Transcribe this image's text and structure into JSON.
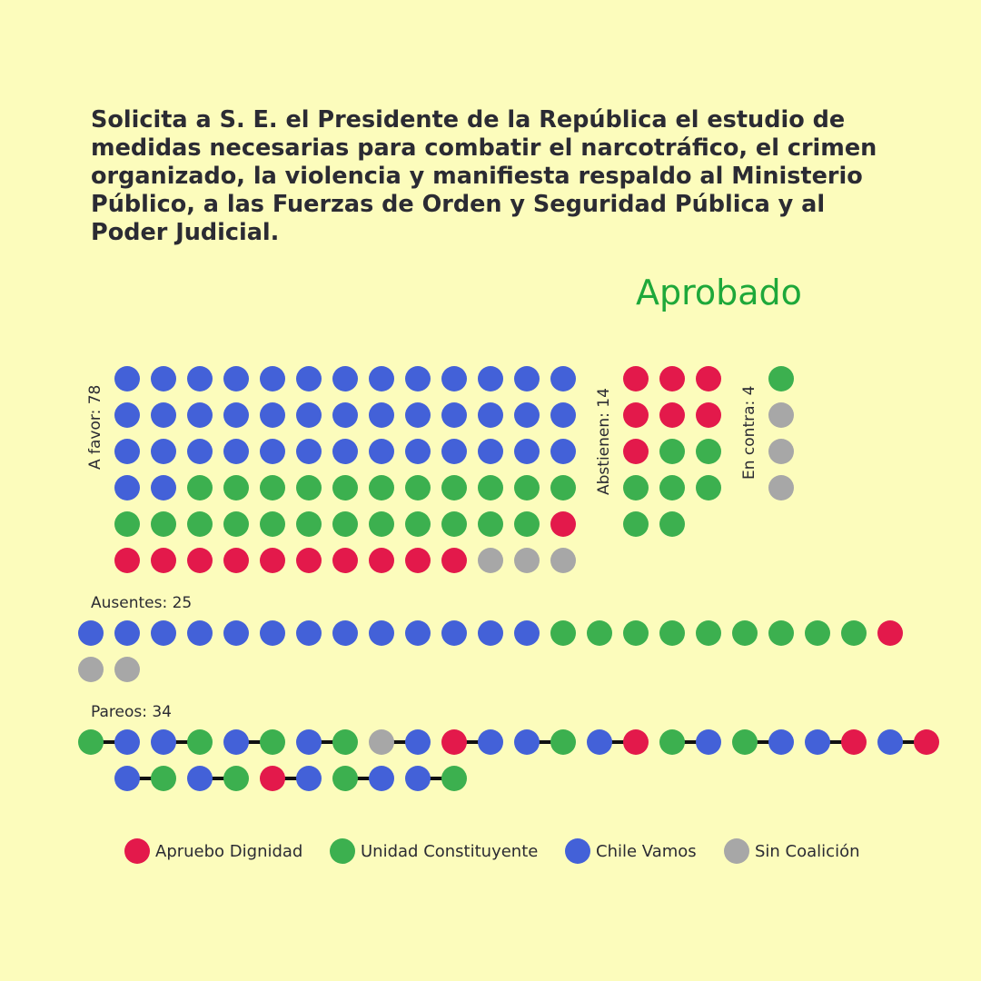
{
  "title": "Solicita a S. E. el Presidente de la República el estudio de medidas necesarias para combatir el narcotráfico, el crimen organizado, la violencia y manifiesta respaldo al Ministerio Público, a las Fuerzas de Orden y Seguridad Pública y al Poder Judicial.",
  "result": "Aprobado",
  "colors": {
    "AD": "#e3194b",
    "UC": "#3cb04f",
    "CV": "#4361d8",
    "SC": "#a7a7a7",
    "result": "#1ea83a",
    "background": "#fcfcbc"
  },
  "chart_data": {
    "type": "dot-vote",
    "coalitions": [
      {
        "code": "AD",
        "name": "Apruebo Dignidad"
      },
      {
        "code": "UC",
        "name": "Unidad Constituyente"
      },
      {
        "code": "CV",
        "name": "Chile Vamos"
      },
      {
        "code": "SC",
        "name": "Sin Coalición"
      }
    ],
    "groups": [
      {
        "id": "favor",
        "label": "A favor: 78",
        "count": 78,
        "breakdown": {
          "CV": 41,
          "UC": 23,
          "AD": 11,
          "SC": 3
        }
      },
      {
        "id": "abstienen",
        "label": "Abstienen: 14",
        "count": 14,
        "breakdown": {
          "AD": 7,
          "UC": 7
        }
      },
      {
        "id": "contra",
        "label": "En contra: 4",
        "count": 4,
        "breakdown": {
          "UC": 1,
          "SC": 3
        }
      },
      {
        "id": "ausentes",
        "label": "Ausentes: 25",
        "count": 25,
        "breakdown": {
          "CV": 13,
          "UC": 9,
          "AD": 1,
          "SC": 2
        }
      },
      {
        "id": "pareos",
        "label": "Pareos: 34",
        "count": 34,
        "pairs": [
          [
            "UC",
            "CV"
          ],
          [
            "CV",
            "UC"
          ],
          [
            "CV",
            "UC"
          ],
          [
            "CV",
            "UC"
          ],
          [
            "SC",
            "CV"
          ],
          [
            "AD",
            "CV"
          ],
          [
            "CV",
            "UC"
          ],
          [
            "CV",
            "AD"
          ],
          [
            "UC",
            "CV"
          ],
          [
            "UC",
            "CV"
          ],
          [
            "CV",
            "AD"
          ],
          [
            "CV",
            "AD"
          ],
          [
            "CV",
            "UC"
          ],
          [
            "CV",
            "UC"
          ],
          [
            "AD",
            "CV"
          ],
          [
            "UC",
            "CV"
          ],
          [
            "CV",
            "UC"
          ]
        ]
      }
    ]
  }
}
